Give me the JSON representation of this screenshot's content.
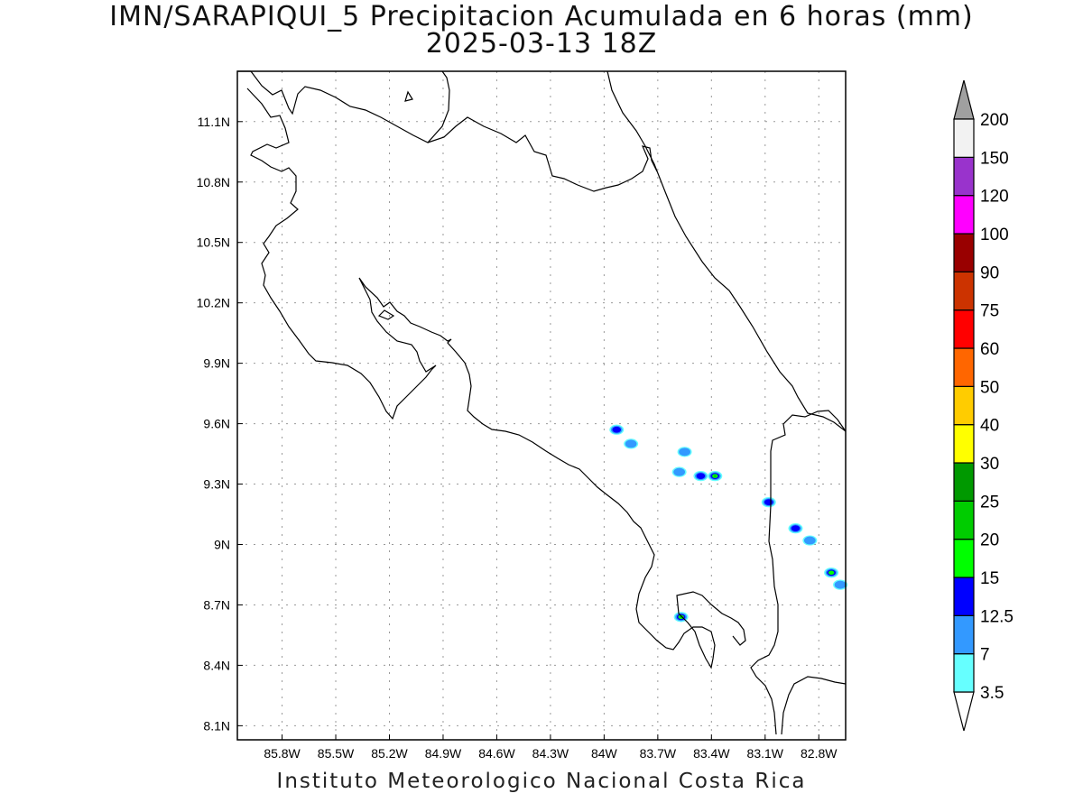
{
  "title": {
    "line1": "IMN/SARAPIQUI_5 Precipitacion Acumulada en 6 horas (mm)",
    "line2": "2025-03-13 18Z"
  },
  "footer": "Instituto Meteorologico Nacional Costa Rica",
  "map": {
    "lon_range": [
      -86.05,
      -82.65
    ],
    "lat_range": [
      8.03,
      11.35
    ],
    "lon_ticks": [
      -85.8,
      -85.5,
      -85.2,
      -84.9,
      -84.6,
      -84.3,
      -84.0,
      -83.7,
      -83.4,
      -83.1,
      -82.8
    ],
    "lon_labels": [
      "85.8W",
      "85.5W",
      "85.2W",
      "84.9W",
      "84.6W",
      "84.3W",
      "84W",
      "83.7W",
      "83.4W",
      "83.1W",
      "82.8W"
    ],
    "lat_ticks": [
      8.1,
      8.4,
      8.7,
      9.0,
      9.3,
      9.6,
      9.9,
      10.2,
      10.5,
      10.8,
      11.1
    ],
    "lat_labels": [
      "8.1N",
      "8.4N",
      "8.7N",
      "9N",
      "9.3N",
      "9.6N",
      "9.9N",
      "10.2N",
      "10.5N",
      "10.8N",
      "11.1N"
    ],
    "grid": true
  },
  "legend": {
    "levels": [
      "3.5",
      "7",
      "12.5",
      "15",
      "20",
      "25",
      "30",
      "40",
      "50",
      "60",
      "75",
      "90",
      "100",
      "120",
      "150",
      "200"
    ],
    "colors": [
      "#66ffff",
      "#3399ff",
      "#0000ff",
      "#00ff00",
      "#00cc00",
      "#009900",
      "#ffff00",
      "#ffcc00",
      "#ff6600",
      "#ff0000",
      "#cc3300",
      "#990000",
      "#ff00ff",
      "#9933cc",
      "#f2f2f2"
    ],
    "under_color": "#ffffff",
    "over_color": "#a0a0a0"
  },
  "precip_cells": [
    {
      "lon": -83.93,
      "lat": 9.57,
      "mm": 12.5
    },
    {
      "lon": -83.85,
      "lat": 9.5,
      "mm": 7
    },
    {
      "lon": -83.55,
      "lat": 9.46,
      "mm": 7
    },
    {
      "lon": -83.58,
      "lat": 9.36,
      "mm": 7
    },
    {
      "lon": -83.46,
      "lat": 9.34,
      "mm": 12.5
    },
    {
      "lon": -83.38,
      "lat": 9.34,
      "mm": 25
    },
    {
      "lon": -83.08,
      "lat": 9.21,
      "mm": 12.5
    },
    {
      "lon": -82.93,
      "lat": 9.08,
      "mm": 12.5
    },
    {
      "lon": -82.85,
      "lat": 9.02,
      "mm": 7
    },
    {
      "lon": -82.73,
      "lat": 8.86,
      "mm": 15
    },
    {
      "lon": -82.68,
      "lat": 8.8,
      "mm": 7
    },
    {
      "lon": -83.57,
      "lat": 8.64,
      "mm": 20
    }
  ]
}
